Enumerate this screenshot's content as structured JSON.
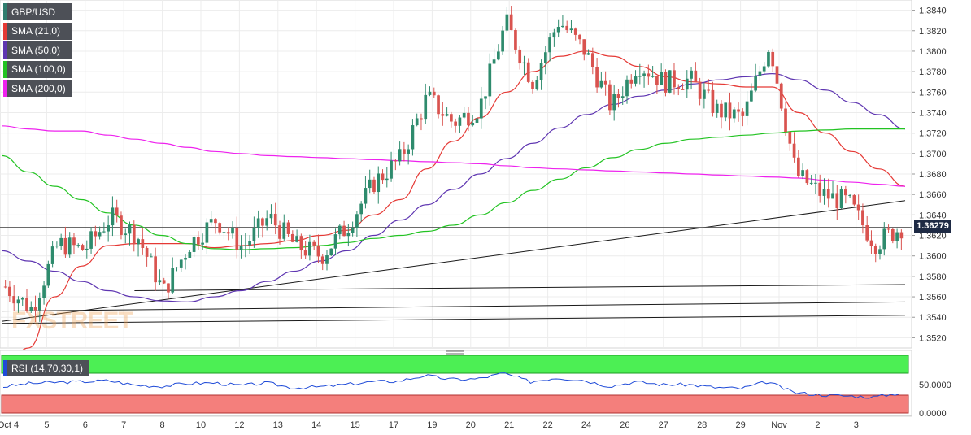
{
  "symbol": "GBP/USD",
  "legend": [
    {
      "label": "GBP/USD",
      "color": "#4d5057"
    },
    {
      "label": "SMA (21,0)",
      "color": "#e53935"
    },
    {
      "label": "SMA (50,0)",
      "color": "#5e35b1"
    },
    {
      "label": "SMA (100,0)",
      "color": "#22c322"
    },
    {
      "label": "SMA (200,0)",
      "color": "#ee22ee"
    }
  ],
  "watermark": "FXSTREET",
  "current_price_label": "1.36279",
  "rsi": {
    "label": "RSI (14,70,30,1)",
    "ticks": [
      "50.0000",
      "0.0000"
    ],
    "overbought": 70,
    "oversold": 30
  },
  "colors": {
    "up": "#2e8b6d",
    "down": "#d9534f"
  },
  "chart_data": {
    "type": "candlestick",
    "timeframe": "hourly",
    "x_labels": [
      "Oct 4",
      "5",
      "6",
      "7",
      "8",
      "10",
      "12",
      "13",
      "14",
      "15",
      "17",
      "19",
      "20",
      "21",
      "22",
      "24",
      "26",
      "27",
      "28",
      "29",
      "Nov",
      "2",
      "3"
    ],
    "y_ticks": [
      "1.3840",
      "1.3820",
      "1.3800",
      "1.3780",
      "1.3760",
      "1.3740",
      "1.3720",
      "1.3700",
      "1.3680",
      "1.3660",
      "1.3640",
      "1.3620",
      "1.3600",
      "1.3580",
      "1.3560",
      "1.3540",
      "1.3520"
    ],
    "ylim": [
      1.351,
      1.385
    ],
    "last_price": 1.36279,
    "close_path": [
      {
        "x": 0,
        "y": 1.357
      },
      {
        "x": 1,
        "y": 1.3548
      },
      {
        "x": 2,
        "y": 1.3612
      },
      {
        "x": 3,
        "y": 1.3606
      },
      {
        "x": 4,
        "y": 1.3638
      },
      {
        "x": 5,
        "y": 1.362
      },
      {
        "x": 6,
        "y": 1.3565
      },
      {
        "x": 7,
        "y": 1.3612
      },
      {
        "x": 8,
        "y": 1.3636
      },
      {
        "x": 9,
        "y": 1.3608
      },
      {
        "x": 10,
        "y": 1.3638
      },
      {
        "x": 11,
        "y": 1.361
      },
      {
        "x": 12,
        "y": 1.36
      },
      {
        "x": 13,
        "y": 1.363
      },
      {
        "x": 14,
        "y": 1.3672
      },
      {
        "x": 15,
        "y": 1.3695
      },
      {
        "x": 16,
        "y": 1.3755
      },
      {
        "x": 17,
        "y": 1.373
      },
      {
        "x": 18,
        "y": 1.3745
      },
      {
        "x": 19,
        "y": 1.3828
      },
      {
        "x": 20,
        "y": 1.377
      },
      {
        "x": 21,
        "y": 1.383
      },
      {
        "x": 22,
        "y": 1.38
      },
      {
        "x": 23,
        "y": 1.3745
      },
      {
        "x": 24,
        "y": 1.3788
      },
      {
        "x": 25,
        "y": 1.377
      },
      {
        "x": 26,
        "y": 1.3772
      },
      {
        "x": 27,
        "y": 1.3742
      },
      {
        "x": 28,
        "y": 1.3735
      },
      {
        "x": 29,
        "y": 1.3808
      },
      {
        "x": 30,
        "y": 1.368
      },
      {
        "x": 31,
        "y": 1.366
      },
      {
        "x": 32,
        "y": 1.3652
      },
      {
        "x": 33,
        "y": 1.3612
      },
      {
        "x": 34,
        "y": 1.3628
      }
    ],
    "support_lines": [
      {
        "from": {
          "i": 0,
          "y": 1.3536
        },
        "to": {
          "i": 34,
          "y": 1.3654
        }
      },
      {
        "from": {
          "i": 5,
          "y": 1.3566
        },
        "to": {
          "i": 34,
          "y": 1.3572
        }
      },
      {
        "from": {
          "i": 0,
          "y": 1.3546
        },
        "to": {
          "i": 34,
          "y": 1.3555
        }
      },
      {
        "from": {
          "i": 0,
          "y": 1.3534
        },
        "to": {
          "i": 34,
          "y": 1.3542
        }
      }
    ],
    "sma": [
      {
        "name": "SMA (21,0)",
        "color": "#e53935",
        "y": [
          1.348,
          1.351,
          1.356,
          1.359,
          1.361,
          1.3612,
          1.3612,
          1.3612,
          1.3608,
          1.361,
          1.3612,
          1.3615,
          1.362,
          1.3625,
          1.364,
          1.3655,
          1.3685,
          1.3712,
          1.3735,
          1.376,
          1.378,
          1.3795,
          1.38,
          1.3795,
          1.3785,
          1.3775,
          1.377,
          1.3768,
          1.3765,
          1.3765,
          1.374,
          1.372,
          1.3702,
          1.3685,
          1.3668
        ]
      },
      {
        "name": "SMA (50,0)",
        "color": "#5e35b1",
        "y": [
          1.3605,
          1.3595,
          1.3585,
          1.3575,
          1.3566,
          1.356,
          1.3556,
          1.3555,
          1.356,
          1.3566,
          1.3575,
          1.3585,
          1.3595,
          1.3605,
          1.362,
          1.3635,
          1.365,
          1.3665,
          1.368,
          1.3695,
          1.371,
          1.3725,
          1.3738,
          1.3748,
          1.3756,
          1.3762,
          1.3768,
          1.3772,
          1.3775,
          1.3778,
          1.3772,
          1.3762,
          1.375,
          1.3738,
          1.3724
        ]
      },
      {
        "name": "SMA (100,0)",
        "color": "#22c322",
        "y": [
          1.3698,
          1.3682,
          1.3668,
          1.3655,
          1.3642,
          1.363,
          1.362,
          1.3612,
          1.3607,
          1.3606,
          1.3607,
          1.3608,
          1.361,
          1.3613,
          1.3617,
          1.362,
          1.3624,
          1.363,
          1.364,
          1.3652,
          1.3664,
          1.3675,
          1.3686,
          1.3696,
          1.3704,
          1.371,
          1.3714,
          1.3716,
          1.3718,
          1.372,
          1.3722,
          1.3723,
          1.3724,
          1.3724,
          1.3724
        ]
      },
      {
        "name": "SMA (200,0)",
        "color": "#ee22ee",
        "y": [
          1.3727,
          1.3724,
          1.3722,
          1.3722,
          1.3718,
          1.3714,
          1.371,
          1.3706,
          1.3702,
          1.37,
          1.3698,
          1.3697,
          1.3696,
          1.3695,
          1.3694,
          1.3693,
          1.3692,
          1.3691,
          1.369,
          1.3688,
          1.3686,
          1.3685,
          1.3684,
          1.3683,
          1.3682,
          1.3681,
          1.368,
          1.3679,
          1.3678,
          1.3677,
          1.3676,
          1.3674,
          1.3672,
          1.367,
          1.3668
        ]
      }
    ],
    "rsi_values": [
      46,
      52,
      54,
      55,
      57,
      49,
      47,
      52,
      53,
      48,
      53,
      44,
      46,
      50,
      55,
      56,
      66,
      59,
      60,
      70,
      55,
      62,
      58,
      47,
      55,
      50,
      50,
      45,
      43,
      55,
      36,
      32,
      30,
      28,
      35
    ]
  }
}
